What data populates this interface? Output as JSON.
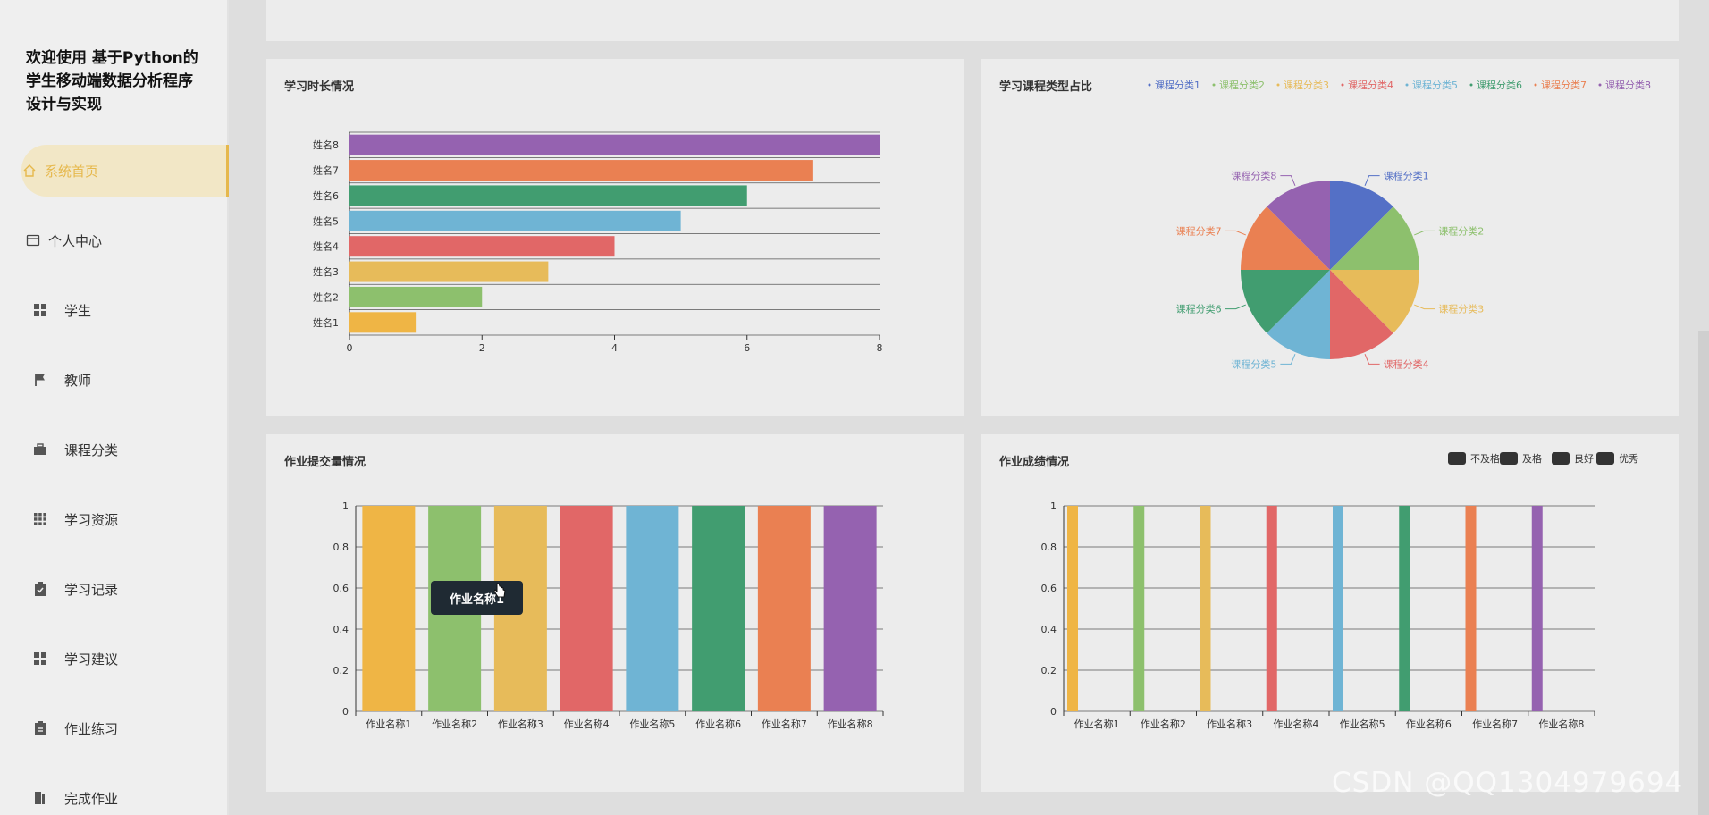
{
  "app": {
    "title_line1": "欢迎使用 基于Python的",
    "title_line2": "学生移动端数据分析程序",
    "title_line3": "设计与实现"
  },
  "sidebar": {
    "items": [
      {
        "label": "系统首页",
        "icon": "home-icon"
      },
      {
        "label": "个人中心",
        "icon": "card-icon"
      },
      {
        "label": "学生",
        "icon": "grid-icon"
      },
      {
        "label": "教师",
        "icon": "flag-icon"
      },
      {
        "label": "课程分类",
        "icon": "briefcase-icon"
      },
      {
        "label": "学习资源",
        "icon": "apps-icon"
      },
      {
        "label": "学习记录",
        "icon": "clipboard-check-icon"
      },
      {
        "label": "学习建议",
        "icon": "grid-icon"
      },
      {
        "label": "作业练习",
        "icon": "clipboard-icon"
      },
      {
        "label": "完成作业",
        "icon": "book-icon"
      }
    ]
  },
  "panels": {
    "study_time": "学习时长情况",
    "course_type": "学习课程类型占比",
    "submissions": "作业提交量情况",
    "grades": "作业成绩情况"
  },
  "colors": {
    "palette": [
      "#e7b64a",
      "#8dc06d",
      "#e7bb5a",
      "#e16767",
      "#6fb4d4",
      "#419d70",
      "#ea8052",
      "#9562b0"
    ],
    "accent": "#e6b84c"
  },
  "tooltip": {
    "text": "作业名称1"
  },
  "watermark": "CSDN @QQ1304979694",
  "chart_data": [
    {
      "type": "bar",
      "orientation": "horizontal",
      "title": "学习时长情况",
      "categories": [
        "姓名1",
        "姓名2",
        "姓名3",
        "姓名4",
        "姓名5",
        "姓名6",
        "姓名7",
        "姓名8"
      ],
      "values": [
        1,
        2,
        3,
        4,
        5,
        6,
        7,
        8
      ],
      "colors": [
        "#efb545",
        "#8dc06d",
        "#e7bb5a",
        "#e16767",
        "#6fb4d4",
        "#419d70",
        "#ea8052",
        "#9562b0"
      ],
      "xticks": [
        "0",
        "2",
        "4",
        "6",
        "8"
      ],
      "xlim": [
        0,
        8
      ]
    },
    {
      "type": "pie",
      "title": "学习课程类型占比",
      "labels": [
        "课程分类1",
        "课程分类2",
        "课程分类3",
        "课程分类4",
        "课程分类5",
        "课程分类6",
        "课程分类7",
        "课程分类8"
      ],
      "values": [
        1,
        1,
        1,
        1,
        1,
        1,
        1,
        1
      ],
      "colors": [
        "#5470c6",
        "#8dc06d",
        "#e7bb5a",
        "#e16767",
        "#6fb4d4",
        "#419d70",
        "#ea8052",
        "#9562b0"
      ]
    },
    {
      "type": "bar",
      "title": "作业提交量情况",
      "categories": [
        "作业名称1",
        "作业名称2",
        "作业名称3",
        "作业名称4",
        "作业名称5",
        "作业名称6",
        "作业名称7",
        "作业名称8"
      ],
      "values": [
        1,
        1,
        1,
        1,
        1,
        1,
        1,
        1
      ],
      "colors": [
        "#efb545",
        "#8dc06d",
        "#e7bb5a",
        "#e16767",
        "#6fb4d4",
        "#419d70",
        "#ea8052",
        "#9562b0"
      ],
      "yticks": [
        "0",
        "0.2",
        "0.4",
        "0.6",
        "0.8",
        "1"
      ],
      "ylim": [
        0,
        1
      ]
    },
    {
      "type": "bar",
      "title": "作业成绩情况",
      "categories": [
        "作业名称1",
        "作业名称2",
        "作业名称3",
        "作业名称4",
        "作业名称5",
        "作业名称6",
        "作业名称7",
        "作业名称8"
      ],
      "legend": [
        "不及格",
        "及格",
        "良好",
        "优秀"
      ],
      "values": [
        1,
        1,
        1,
        1,
        1,
        1,
        1,
        1
      ],
      "colors": [
        "#efb545",
        "#8dc06d",
        "#e7bb5a",
        "#e16767",
        "#6fb4d4",
        "#419d70",
        "#ea8052",
        "#9562b0"
      ],
      "yticks": [
        "0",
        "0.2",
        "0.4",
        "0.6",
        "0.8",
        "1"
      ],
      "ylim": [
        0,
        1
      ]
    }
  ]
}
